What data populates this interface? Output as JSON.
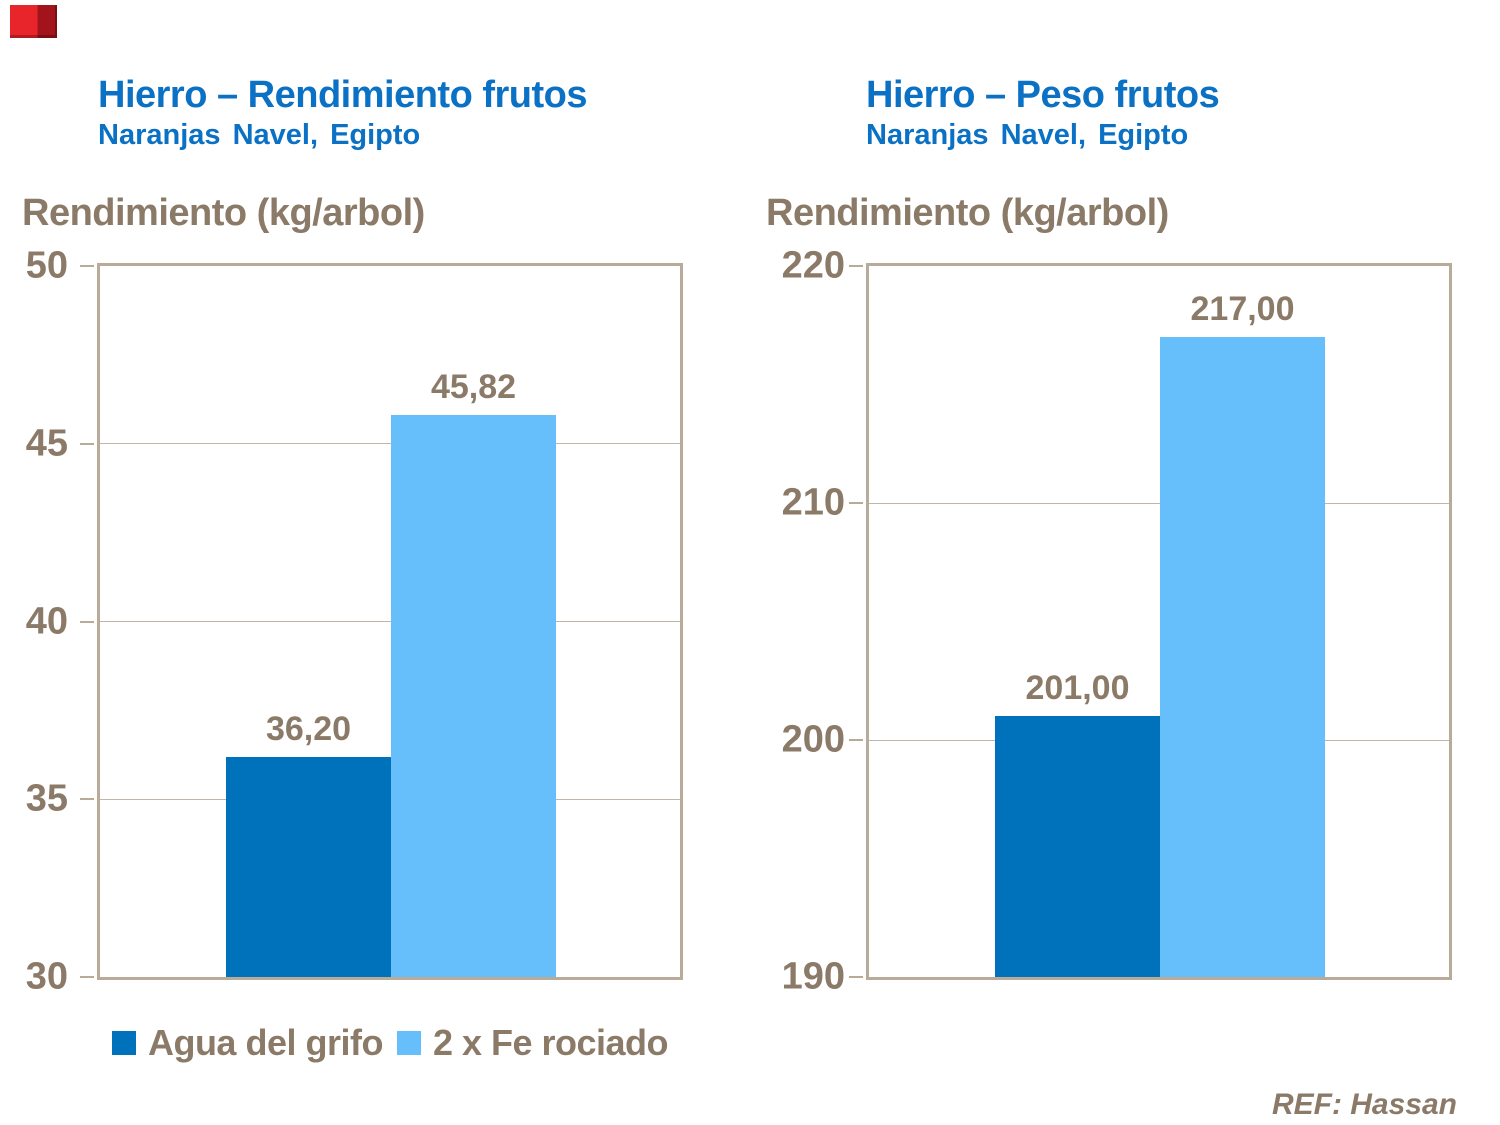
{
  "page": {
    "background": "#FFFFFF",
    "ref_text": "REF: Hassan"
  },
  "logo": {
    "name": "red-corner-logo",
    "color_main": "#E8252B",
    "color_dark": "#A3131C"
  },
  "colors": {
    "title_blue": "#0A71C4",
    "text_brown": "#8B7A67",
    "axis_taupe": "#B9AB9A",
    "grid_taupe": "#C2B5A5",
    "bar_dark": "#0072BC",
    "bar_light": "#66BEFB"
  },
  "legend": {
    "items": [
      {
        "label": "Agua del grifo",
        "color": "#0072BC"
      },
      {
        "label": "2 x Fe rociado",
        "color": "#66BEFB"
      }
    ]
  },
  "chart_data": [
    {
      "type": "bar",
      "title": "Hierro – Rendimiento frutos",
      "subtitle": "Naranjas Navel, Egipto",
      "ylabel": "Rendimiento (kg/arbol)",
      "categories": [
        "Agua del grifo",
        "2 x Fe rociado"
      ],
      "values": [
        36.2,
        45.82
      ],
      "value_labels": [
        "36,20",
        "45,82"
      ],
      "ylim": [
        30,
        50
      ],
      "yticks": [
        30,
        35,
        40,
        45,
        50
      ],
      "grid": true,
      "legend_position": "bottom"
    },
    {
      "type": "bar",
      "title": "Hierro – Peso frutos",
      "subtitle": "Naranjas Navel, Egipto",
      "ylabel": "Rendimiento (kg/arbol)",
      "categories": [
        "Agua del grifo",
        "2 x Fe rociado"
      ],
      "values": [
        201.0,
        217.0
      ],
      "value_labels": [
        "201,00",
        "217,00"
      ],
      "ylim": [
        190,
        220
      ],
      "yticks": [
        190,
        200,
        210,
        220
      ],
      "grid": true,
      "legend_position": "none"
    }
  ]
}
